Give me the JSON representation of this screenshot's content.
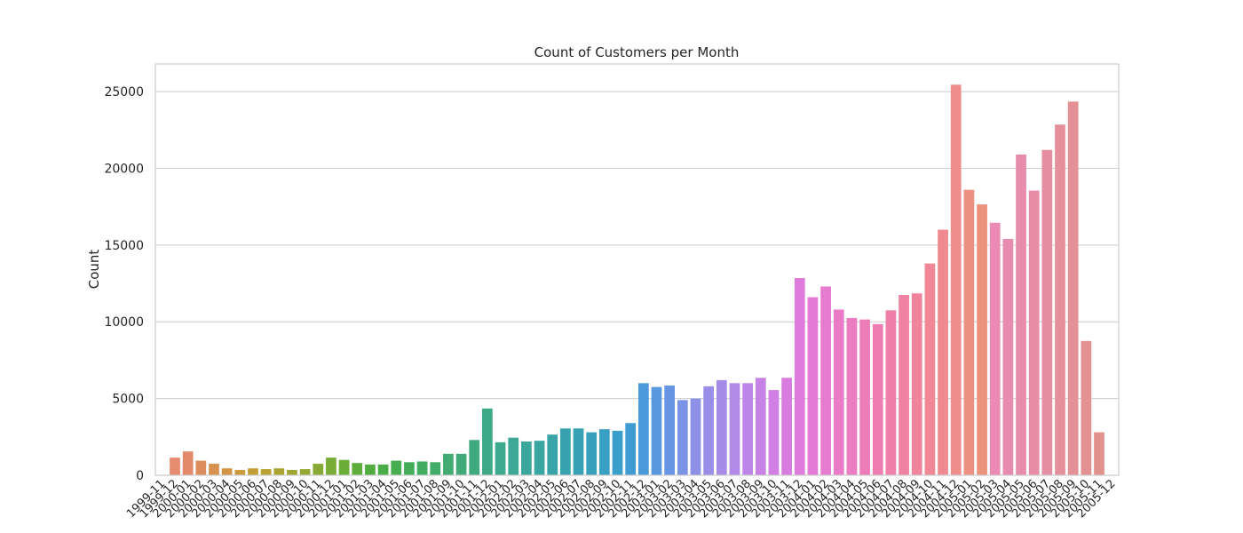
{
  "chart_data": {
    "type": "bar",
    "title": "Count of Customers per Month",
    "xlabel": "",
    "ylabel": "Count",
    "ylim": [
      0,
      26800
    ],
    "yticks": [
      0,
      5000,
      10000,
      15000,
      20000,
      25000
    ],
    "grid": "horizontal",
    "categories": [
      "1999-11",
      "1999-12",
      "2000-01",
      "2000-02",
      "2000-03",
      "2000-04",
      "2000-05",
      "2000-06",
      "2000-07",
      "2000-08",
      "2000-09",
      "2000-10",
      "2000-11",
      "2000-12",
      "2001-01",
      "2001-02",
      "2001-03",
      "2001-04",
      "2001-05",
      "2001-06",
      "2001-07",
      "2001-08",
      "2001-09",
      "2001-10",
      "2001-11",
      "2001-12",
      "2002-01",
      "2002-02",
      "2002-03",
      "2002-04",
      "2002-05",
      "2002-06",
      "2002-07",
      "2002-08",
      "2002-09",
      "2002-10",
      "2002-11",
      "2002-12",
      "2003-01",
      "2003-02",
      "2003-03",
      "2003-04",
      "2003-05",
      "2003-06",
      "2003-07",
      "2003-08",
      "2003-09",
      "2003-10",
      "2003-11",
      "2003-12",
      "2004-01",
      "2004-02",
      "2004-03",
      "2004-04",
      "2004-05",
      "2004-06",
      "2004-07",
      "2004-08",
      "2004-09",
      "2004-10",
      "2004-11",
      "2004-12",
      "2005-01",
      "2005-02",
      "2005-03",
      "2005-04",
      "2005-05",
      "2005-06",
      "2005-07",
      "2005-08",
      "2005-09",
      "2005-10",
      "2005-11",
      "2005-12"
    ],
    "values": [
      0,
      1150,
      1550,
      950,
      750,
      450,
      350,
      450,
      400,
      450,
      350,
      400,
      750,
      1150,
      1000,
      800,
      700,
      700,
      950,
      850,
      900,
      850,
      1400,
      1400,
      2300,
      4350,
      2150,
      2450,
      2200,
      2250,
      2650,
      3050,
      3050,
      2800,
      3000,
      2900,
      3400,
      6000,
      5750,
      5850,
      4900,
      5000,
      5800,
      6200,
      6000,
      6000,
      6350,
      5550,
      6350,
      12850,
      11600,
      12300,
      10800,
      10250,
      10150,
      9850,
      10750,
      11750,
      11850,
      13800,
      16000,
      25450,
      18600,
      17650,
      16450,
      15400,
      20900,
      18550,
      21200,
      22850,
      24350,
      8750,
      2800,
      0
    ],
    "colors": [
      "#e8846c",
      "#e68a70",
      "#e2896a",
      "#dc8d5c",
      "#d79250",
      "#d19544",
      "#cb9a3c",
      "#c29e35",
      "#b7a232",
      "#aca432",
      "#a0a633",
      "#94a834",
      "#86aa35",
      "#79ac36",
      "#6cad38",
      "#5fae3b",
      "#52ad40",
      "#49ad48",
      "#46ad50",
      "#44ad59",
      "#42ad62",
      "#42ac69",
      "#41ab71",
      "#41aa78",
      "#40aa7f",
      "#3ea987",
      "#3da98e",
      "#3ca895",
      "#3ba69b",
      "#3aa6a2",
      "#39a4a8",
      "#38a3ae",
      "#37a2b5",
      "#37a0bb",
      "#38a0c2",
      "#3a9ecb",
      "#3f9cd2",
      "#4a9ad9",
      "#5898df",
      "#6895e3",
      "#7a93e6",
      "#8c91e7",
      "#9b8ee8",
      "#a78be8",
      "#b288e8",
      "#bd85e7",
      "#c782e5",
      "#d07fe2",
      "#d87cdf",
      "#de7bdb",
      "#e37bd6",
      "#e77bd0",
      "#ea7bc8",
      "#ec7cc0",
      "#ed7db9",
      "#ee7eb1",
      "#ef80aa",
      "#ef82a3",
      "#ef849c",
      "#ef8796",
      "#ee8a90",
      "#ee8d8a",
      "#ed9084",
      "#ec937e",
      "#ea8ab5",
      "#e98bb0",
      "#e88cab",
      "#e78da6",
      "#e68ea1",
      "#e58f9c",
      "#e49097",
      "#e39192",
      "#e2928d",
      "#e19388"
    ]
  }
}
